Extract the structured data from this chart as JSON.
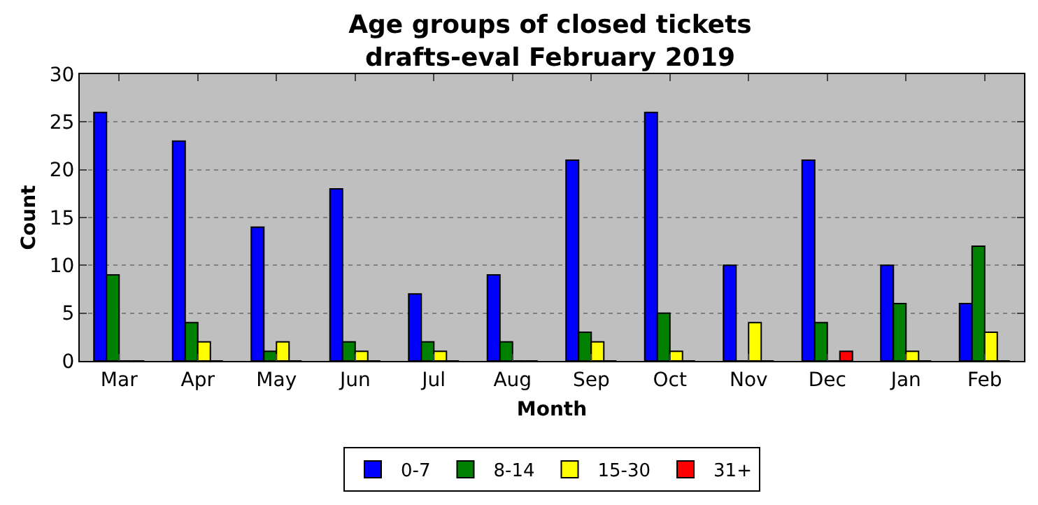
{
  "chart_data": {
    "type": "bar",
    "title": "Age groups of closed tickets",
    "subtitle": "drafts-eval February 2019",
    "xlabel": "Month",
    "ylabel": "Count",
    "categories": [
      "Mar",
      "Apr",
      "May",
      "Jun",
      "Jul",
      "Aug",
      "Sep",
      "Oct",
      "Nov",
      "Dec",
      "Jan",
      "Feb"
    ],
    "series": [
      {
        "name": "0-7",
        "color": "#0000ff",
        "values": [
          26,
          23,
          14,
          18,
          7,
          9,
          21,
          26,
          10,
          21,
          10,
          6
        ]
      },
      {
        "name": "8-14",
        "color": "#008000",
        "values": [
          9,
          4,
          1,
          2,
          2,
          2,
          3,
          5,
          0,
          4,
          6,
          12
        ]
      },
      {
        "name": "15-30",
        "color": "#ffff00",
        "values": [
          0,
          2,
          2,
          1,
          1,
          0,
          2,
          1,
          4,
          0,
          1,
          3
        ]
      },
      {
        "name": "31+",
        "color": "#ff0000",
        "values": [
          0,
          0,
          0,
          0,
          0,
          0,
          0,
          0,
          0,
          1,
          0,
          0
        ]
      }
    ],
    "ylim": [
      0,
      30
    ],
    "yticks": [
      0,
      5,
      10,
      15,
      20,
      25,
      30
    ],
    "grid": "y",
    "legend": "bottom"
  }
}
